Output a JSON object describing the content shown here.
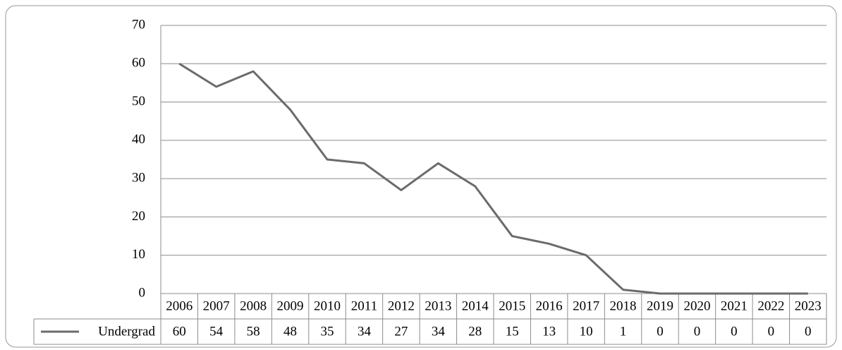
{
  "chart_data": {
    "type": "line",
    "categories": [
      "2006",
      "2007",
      "2008",
      "2009",
      "2010",
      "2011",
      "2012",
      "2013",
      "2014",
      "2015",
      "2016",
      "2017",
      "2018",
      "2019",
      "2020",
      "2021",
      "2022",
      "2023"
    ],
    "series": [
      {
        "name": "Undergrad",
        "color": "#6b6b6b",
        "values": [
          60,
          54,
          58,
          48,
          35,
          34,
          27,
          34,
          28,
          15,
          13,
          10,
          1,
          0,
          0,
          0,
          0,
          0
        ]
      }
    ],
    "ylim": [
      0,
      70
    ],
    "yticks": [
      0,
      10,
      20,
      30,
      40,
      50,
      60,
      70
    ],
    "grid": true
  }
}
